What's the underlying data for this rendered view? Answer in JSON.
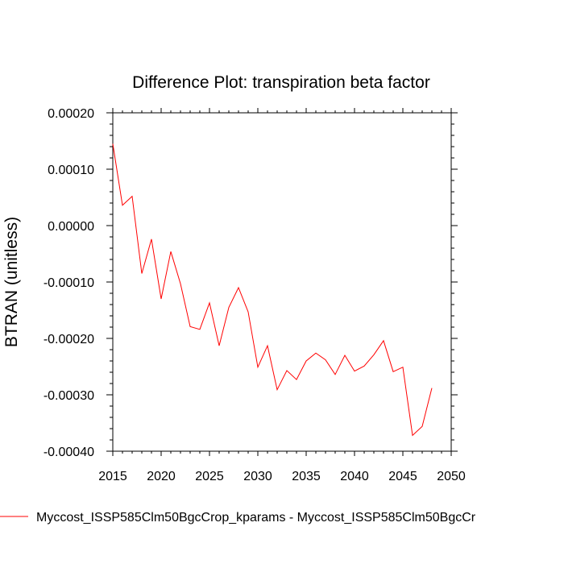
{
  "chart_data": {
    "type": "line",
    "title": "Difference Plot: transpiration beta factor",
    "xlabel": "",
    "ylabel": "BTRAN  (unitless)",
    "xlim": [
      2015,
      2050
    ],
    "ylim": [
      -0.0004,
      0.0002
    ],
    "x_ticks": [
      2015,
      2020,
      2025,
      2030,
      2035,
      2040,
      2045,
      2050
    ],
    "x_tick_labels": [
      "2015",
      "2020",
      "2025",
      "2030",
      "2035",
      "2040",
      "2045",
      "2050"
    ],
    "y_ticks": [
      -0.0004,
      -0.0003,
      -0.0002,
      -0.0001,
      0.0,
      0.0001,
      0.0002
    ],
    "y_tick_labels": [
      "-0.00040",
      "-0.00030",
      "-0.00020",
      "-0.00010",
      "0.00000",
      "0.00010",
      "0.00020"
    ],
    "grid": false,
    "legend_position": "bottom",
    "series": [
      {
        "name": "Myccost_ISSP585Clm50BgcCrop_kparams - Myccost_ISSP585Clm50BgcCr",
        "color": "#ff0000",
        "x": [
          2015,
          2016,
          2017,
          2018,
          2019,
          2020,
          2021,
          2022,
          2023,
          2024,
          2025,
          2026,
          2027,
          2028,
          2029,
          2030,
          2031,
          2032,
          2033,
          2034,
          2035,
          2036,
          2037,
          2038,
          2039,
          2040,
          2041,
          2042,
          2043,
          2044,
          2045,
          2046,
          2047,
          2048
        ],
        "y": [
          0.000145,
          3.6e-05,
          5.2e-05,
          -8.5e-05,
          -2.4e-05,
          -0.00013,
          -4.6e-05,
          -0.000103,
          -0.000179,
          -0.000184,
          -0.000137,
          -0.000213,
          -0.000145,
          -0.00011,
          -0.000153,
          -0.000251,
          -0.000213,
          -0.000291,
          -0.000257,
          -0.000273,
          -0.00024,
          -0.000226,
          -0.000238,
          -0.000264,
          -0.00023,
          -0.000258,
          -0.000249,
          -0.000229,
          -0.000204,
          -0.000259,
          -0.000251,
          -0.000372,
          -0.000356,
          -0.000288
        ]
      }
    ]
  }
}
